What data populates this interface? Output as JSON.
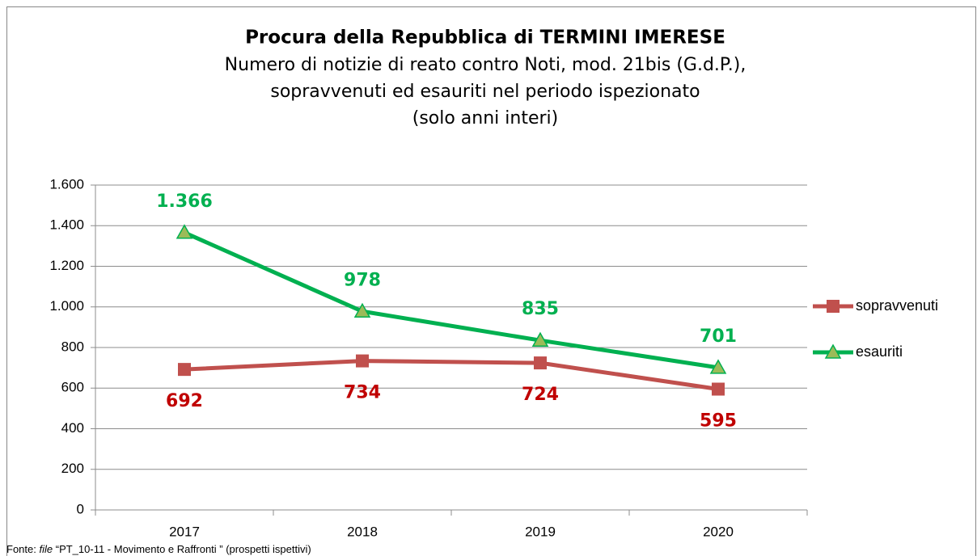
{
  "chart_data": {
    "type": "line",
    "title": "Procura della Repubblica di TERMINI IMERESE",
    "subtitle": [
      "Numero di notizie di reato contro Noti, mod. 21bis (G.d.P.),",
      "sopravvenuti ed esauriti nel periodo ispezionato",
      "(solo anni interi)"
    ],
    "categories": [
      "2017",
      "2018",
      "2019",
      "2020"
    ],
    "series": [
      {
        "name": "sopravvenuti",
        "color": "#c0504d",
        "label_color": "#c00000",
        "marker": "square",
        "values": [
          692,
          734,
          724,
          595
        ],
        "value_labels": [
          "692",
          "734",
          "724",
          "595"
        ]
      },
      {
        "name": "esauriti",
        "color": "#00b050",
        "label_color": "#00b050",
        "marker": "triangle",
        "values": [
          1366,
          978,
          835,
          701
        ],
        "value_labels": [
          "1.366",
          "978",
          "835",
          "701"
        ]
      }
    ],
    "ylim": [
      0,
      1600
    ],
    "yticks": [
      0,
      200,
      400,
      600,
      800,
      {
        "value": 1000,
        "label": "1.000"
      },
      {
        "value": 1200,
        "label": "1.200"
      },
      {
        "value": 1400,
        "label": "1.400"
      },
      {
        "value": 1600,
        "label": "1.600"
      }
    ],
    "grid": true,
    "legend": "right",
    "source": {
      "prefix": "Fonte:",
      "italic": "file",
      "rest": "“PT_10-11 - Movimento e Raffronti ” (prospetti ispettivi)"
    }
  }
}
